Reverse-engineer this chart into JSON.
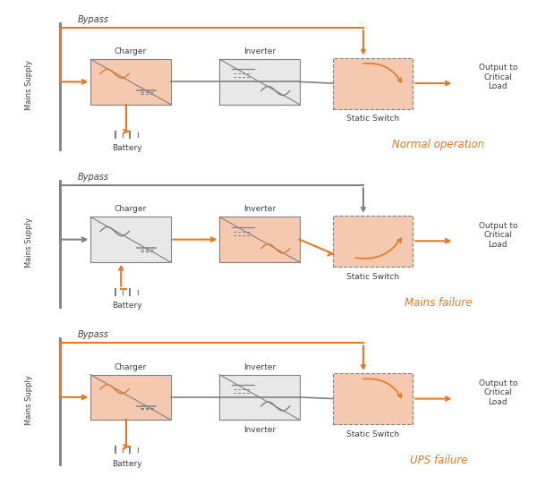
{
  "orange": "#E87722",
  "gray": "#808080",
  "dark_gray": "#555555",
  "charger_fill_active": "#F5C8B0",
  "charger_fill_inactive": "#E8E8E8",
  "switch_fill": "#F5C8B0",
  "dark_text": "#404040",
  "background": "#FFFFFF",
  "diagrams": [
    {
      "title": "Normal operation",
      "title_color": "#E87722",
      "mains_active": true,
      "battery_to_charger": false,
      "charger_active": true,
      "inverter_active": false,
      "bypass_active": true,
      "switch_path": "bypass",
      "inverter_label": "Inverter",
      "bottom_label": null
    },
    {
      "title": "Mains failure",
      "title_color": "#E87722",
      "mains_active": false,
      "battery_to_charger": true,
      "charger_active": false,
      "inverter_active": true,
      "bypass_active": false,
      "switch_path": "inverter",
      "inverter_label": "Inverter",
      "bottom_label": null
    },
    {
      "title": "UPS failure",
      "title_color": "#E87722",
      "mains_active": true,
      "battery_to_charger": false,
      "charger_active": true,
      "inverter_active": false,
      "bypass_active": true,
      "switch_path": "bypass",
      "inverter_label": "Inverter",
      "bottom_label": "Inverter"
    }
  ]
}
